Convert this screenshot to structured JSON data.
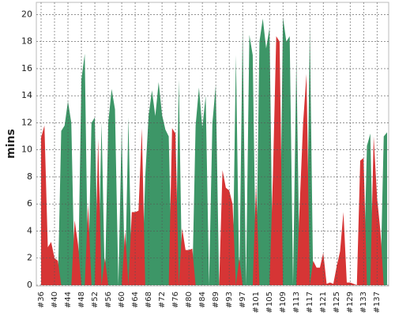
{
  "chart_data": {
    "type": "area",
    "y_label": "mins",
    "categories": [
      "#36",
      null,
      null,
      null,
      "#40",
      null,
      null,
      null,
      "#44",
      null,
      null,
      null,
      "#48",
      null,
      null,
      null,
      "#52",
      null,
      null,
      null,
      "#56",
      null,
      null,
      null,
      "#60",
      null,
      null,
      null,
      "#64",
      null,
      null,
      null,
      "#68",
      null,
      null,
      null,
      "#72",
      null,
      null,
      null,
      "#76",
      null,
      null,
      null,
      "#80",
      null,
      null,
      null,
      "#84",
      null,
      null,
      null,
      "#89",
      null,
      null,
      null,
      "#93",
      null,
      null,
      null,
      "#97",
      null,
      null,
      null,
      "#101",
      null,
      null,
      null,
      "#105",
      null,
      null,
      null,
      "#109",
      null,
      null,
      null,
      "#113",
      null,
      null,
      null,
      "#117",
      null,
      null,
      null,
      "#121",
      null,
      null,
      null,
      "#125",
      null,
      null,
      null,
      "#129",
      null,
      null,
      null,
      "#133",
      null,
      null,
      null,
      "#137",
      null,
      null,
      null
    ],
    "series": [
      {
        "color": "#3d9667",
        "values": [
          0,
          0,
          0,
          0,
          0,
          0,
          11.4,
          11.8,
          13.6,
          12,
          0,
          0,
          15.2,
          17.1,
          0,
          12,
          12.4,
          0,
          12,
          0,
          12,
          14.5,
          13,
          0,
          11.6,
          0,
          12.4,
          0,
          0,
          0,
          0,
          8,
          12.5,
          14.4,
          12.5,
          15,
          12.6,
          11.5,
          11,
          0,
          0,
          15.2,
          0,
          0,
          0,
          0,
          11.8,
          14.6,
          11.6,
          14,
          0,
          12,
          14.8,
          0,
          0,
          0,
          0,
          0,
          17,
          0,
          19,
          0,
          18.5,
          17,
          0,
          18,
          19.7,
          17.5,
          19,
          0,
          0,
          0,
          19.8,
          18,
          18.4,
          0,
          16.8,
          0,
          0,
          0,
          19.1,
          0,
          0,
          0,
          0,
          0,
          0,
          0,
          0,
          0,
          0,
          0,
          0,
          0,
          0,
          0,
          0,
          10.3,
          11.2,
          0,
          0,
          0,
          11,
          11.3
        ]
      },
      {
        "color": "#d63535",
        "values": [
          10.9,
          11.8,
          2.8,
          3.2,
          2,
          1.8,
          0,
          0,
          0,
          0,
          4.8,
          3,
          0,
          0,
          6,
          0,
          0,
          10.8,
          0,
          2,
          0,
          0,
          0,
          0,
          0,
          4,
          0,
          5.4,
          5.4,
          5.5,
          11.6,
          0,
          0,
          0,
          0,
          0,
          0,
          0,
          0,
          11.6,
          11.2,
          0,
          4.2,
          2.6,
          2.6,
          2.7,
          0,
          0,
          0,
          0,
          0,
          0,
          0,
          0,
          8.5,
          7.2,
          7,
          6,
          0,
          2,
          0,
          0,
          0,
          0,
          7.5,
          0,
          0,
          0,
          0,
          8,
          18.4,
          18,
          0,
          0,
          0,
          0,
          0,
          6,
          12,
          15.6,
          0,
          1.8,
          1.3,
          1.3,
          2.4,
          0.1,
          0.2,
          0.1,
          1.4,
          2.5,
          5.4,
          0.2,
          0.2,
          0.1,
          0,
          9.2,
          9.4,
          0,
          0,
          11,
          6.5,
          4,
          0,
          0
        ]
      }
    ],
    "ylim": [
      0,
      20.9
    ],
    "yticks": [
      0,
      2,
      4,
      6,
      8,
      10,
      12,
      14,
      16,
      18,
      20
    ],
    "grid": true
  }
}
